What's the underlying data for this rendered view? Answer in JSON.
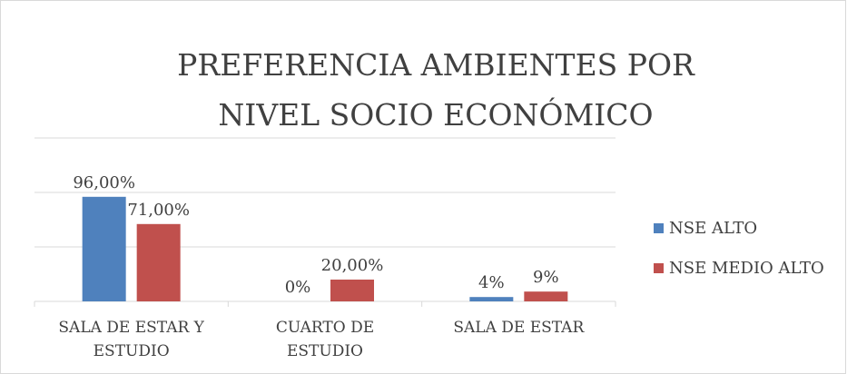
{
  "chart_data": {
    "type": "bar",
    "title": "PREFERENCIA AMBIENTES POR NIVEL SOCIO ECONÓMICO",
    "categories": [
      "SALA DE ESTAR Y ESTUDIO",
      "CUARTO DE ESTUDIO",
      "SALA DE ESTAR"
    ],
    "series": [
      {
        "name": "NSE ALTO",
        "color": "#4f81bd",
        "values": [
          96,
          0,
          4
        ],
        "value_labels": [
          "96,00%",
          "0%",
          "4%"
        ]
      },
      {
        "name": "NSE MEDIO ALTO",
        "color": "#c0504d",
        "values": [
          71,
          20,
          9
        ],
        "value_labels": [
          "71,00%",
          "20,00%",
          "9%"
        ]
      }
    ],
    "ylim": [
      0,
      150
    ],
    "yticks": [
      0,
      50,
      100,
      150
    ],
    "grid": true,
    "legend": "right"
  }
}
